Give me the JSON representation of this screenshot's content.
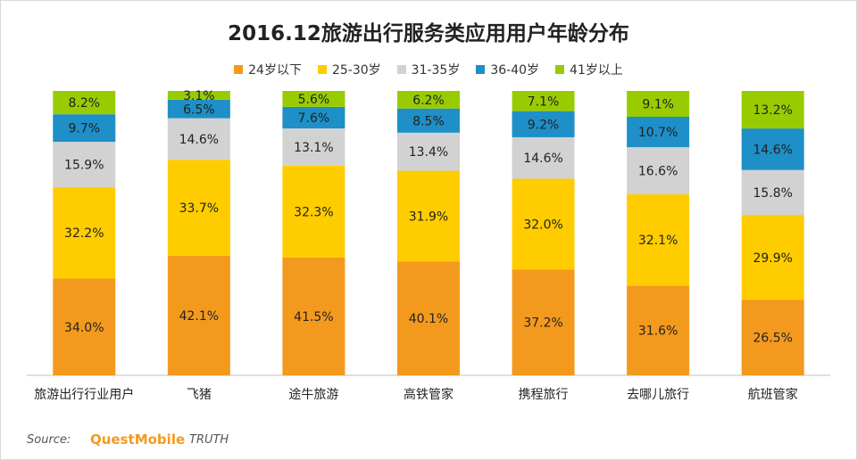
{
  "chart_data": {
    "type": "bar",
    "stacked": true,
    "title": "2016.12旅游出行服务类应用用户年龄分布",
    "categories": [
      "旅游出行行业用户",
      "飞猪",
      "途牛旅游",
      "高铁管家",
      "携程旅行",
      "去哪儿旅行",
      "航班管家"
    ],
    "series": [
      {
        "name": "24岁以下",
        "color": "#f39a1e",
        "values": [
          34.0,
          42.1,
          41.5,
          40.1,
          37.2,
          31.6,
          26.5
        ]
      },
      {
        "name": "25-30岁",
        "color": "#ffcc00",
        "values": [
          32.2,
          33.7,
          32.3,
          31.9,
          32.0,
          32.1,
          29.9
        ]
      },
      {
        "name": "31-35岁",
        "color": "#d2d2d2",
        "values": [
          15.9,
          14.6,
          13.1,
          13.4,
          14.6,
          16.6,
          15.8
        ]
      },
      {
        "name": "36-40岁",
        "color": "#1e8fc7",
        "values": [
          9.7,
          6.5,
          7.6,
          8.5,
          9.2,
          10.7,
          14.6
        ]
      },
      {
        "name": "41岁以上",
        "color": "#99cc00",
        "values": [
          8.2,
          3.1,
          5.6,
          6.2,
          7.1,
          9.1,
          13.2
        ]
      }
    ],
    "value_suffix": "%",
    "legend_position": "top-center"
  },
  "footer": {
    "source_label": "Source:",
    "brand": "QuestMobile",
    "brand_suffix": "TRUTH"
  }
}
